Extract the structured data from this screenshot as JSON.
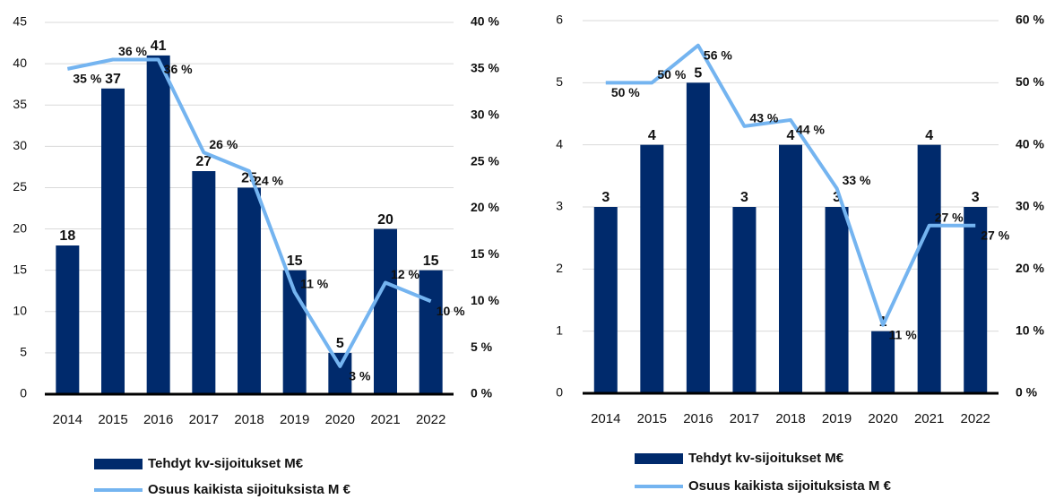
{
  "chart_data": [
    {
      "type": "combo",
      "categories": [
        "2014",
        "2015",
        "2016",
        "2017",
        "2018",
        "2019",
        "2020",
        "2021",
        "2022"
      ],
      "series": [
        {
          "name": "Tehdyt kv-sijoitukset M€",
          "color": "#002a6c",
          "type": "bar",
          "values": [
            18,
            37,
            41,
            27,
            25,
            15,
            5,
            20,
            15
          ]
        },
        {
          "name": "Osuus kaikista sijoituksista M €",
          "color": "#74b4f0",
          "type": "line",
          "axis": "y2",
          "values": [
            35,
            36,
            36,
            26,
            24,
            11,
            3,
            12,
            10
          ],
          "value_labels": [
            "35 %",
            "36 %",
            "36 %",
            "26 %",
            "24 %",
            "11 %",
            "3 %",
            "12 %",
            "10 %"
          ]
        }
      ],
      "ylim": [
        0,
        45
      ],
      "yticks": [
        0,
        5,
        10,
        15,
        20,
        25,
        30,
        35,
        40,
        45
      ],
      "y2lim": [
        0,
        40
      ],
      "y2ticks": [
        {
          "value": 0,
          "label": "0 %"
        },
        {
          "value": 5,
          "label": "5 %"
        },
        {
          "value": 10,
          "label": "10 %"
        },
        {
          "value": 15,
          "label": "15 %"
        },
        {
          "value": 20,
          "label": "20 %"
        },
        {
          "value": 25,
          "label": "25 %"
        },
        {
          "value": 30,
          "label": "30 %"
        },
        {
          "value": 35,
          "label": "35 %"
        },
        {
          "value": 40,
          "label": "40 %"
        }
      ],
      "grid": true
    },
    {
      "type": "combo",
      "categories": [
        "2014",
        "2015",
        "2016",
        "2017",
        "2018",
        "2019",
        "2020",
        "2021",
        "2022"
      ],
      "series": [
        {
          "name": "Tehdyt kv-sijoitukset M€",
          "color": "#002a6c",
          "type": "bar",
          "values": [
            3,
            4,
            5,
            3,
            4,
            3,
            1,
            4,
            3
          ]
        },
        {
          "name": "Osuus kaikista sijoituksista M €",
          "color": "#74b4f0",
          "type": "line",
          "axis": "y2",
          "values": [
            50,
            50,
            56,
            43,
            44,
            33,
            11,
            27,
            27
          ],
          "value_labels": [
            "50 %",
            "50 %",
            "56 %",
            "43 %",
            "44 %",
            "33 %",
            "11 %",
            "27 %",
            "27 %"
          ]
        }
      ],
      "ylim": [
        0,
        6
      ],
      "yticks": [
        0,
        1,
        2,
        3,
        4,
        5,
        6
      ],
      "y2lim": [
        0,
        60
      ],
      "y2ticks": [
        {
          "value": 0,
          "label": "0 %"
        },
        {
          "value": 10,
          "label": "10 %"
        },
        {
          "value": 20,
          "label": "20 %"
        },
        {
          "value": 30,
          "label": "30 %"
        },
        {
          "value": 40,
          "label": "40 %"
        },
        {
          "value": 50,
          "label": "50 %"
        },
        {
          "value": 60,
          "label": "60 %"
        }
      ],
      "grid": true
    }
  ]
}
